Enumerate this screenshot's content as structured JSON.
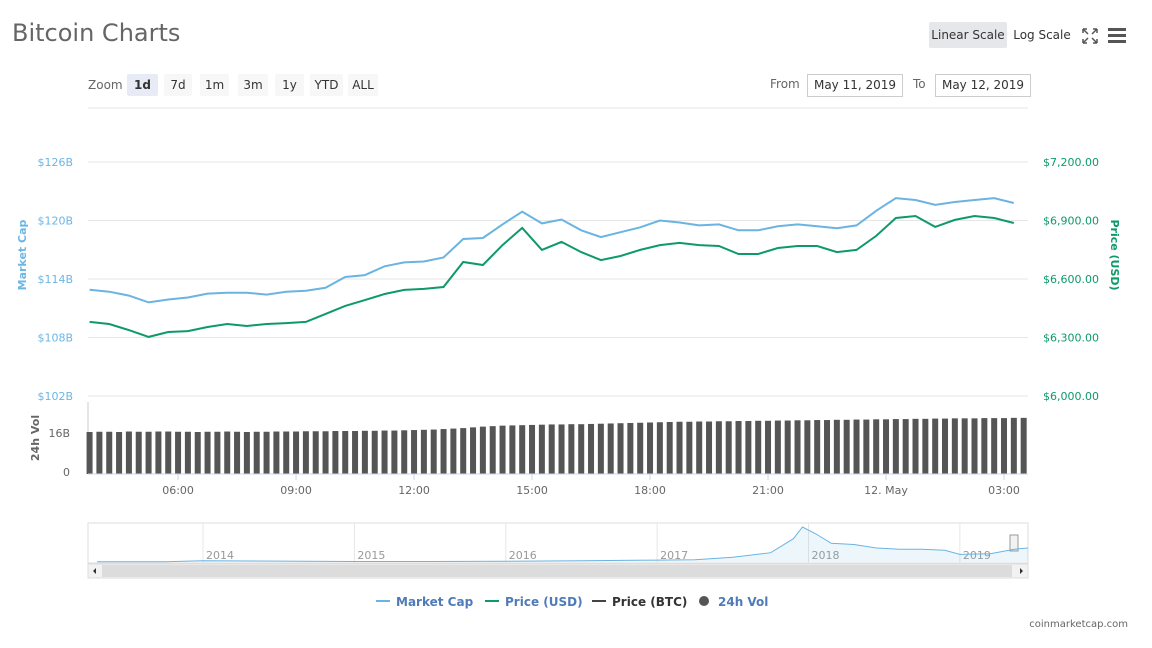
{
  "header": {
    "title": "Bitcoin Charts",
    "scale_options": [
      "Linear Scale",
      "Log Scale"
    ],
    "active_scale": 0
  },
  "zoom": {
    "label": "Zoom",
    "options": [
      "1d",
      "7d",
      "1m",
      "3m",
      "1y",
      "YTD",
      "ALL"
    ],
    "active": 0
  },
  "range": {
    "from_label": "From",
    "from": "May 11, 2019",
    "to_label": "To",
    "to": "May 12, 2019"
  },
  "chart_data": [
    {
      "type": "line",
      "y_label": "Market Cap",
      "y2_label": "Price (USD)",
      "xlim": [
        3.71,
        27.61
      ],
      "ylim": [
        102,
        126
      ],
      "yticks": [
        {
          "value": 102,
          "label": "$102B"
        },
        {
          "value": 108,
          "label": "$108B"
        },
        {
          "value": 114,
          "label": "$114B"
        },
        {
          "value": 120,
          "label": "$120B"
        },
        {
          "value": 126,
          "label": "$126B"
        }
      ],
      "y2lim": [
        6000,
        7200
      ],
      "y2ticks": [
        {
          "value": 6000,
          "label": "$6,000.00"
        },
        {
          "value": 6300,
          "label": "$6,300.00"
        },
        {
          "value": 6600,
          "label": "$6,600.00"
        },
        {
          "value": 6900,
          "label": "$6,900.00"
        },
        {
          "value": 7200,
          "label": "$7,200.00"
        }
      ],
      "grid": true,
      "x": [
        3.75,
        4.25,
        4.75,
        5.25,
        5.75,
        6.25,
        6.75,
        7.25,
        7.75,
        8.25,
        8.75,
        9.25,
        9.75,
        10.25,
        10.75,
        11.25,
        11.75,
        12.25,
        12.75,
        13.25,
        13.75,
        14.25,
        14.75,
        15.25,
        15.75,
        16.25,
        16.75,
        17.25,
        17.75,
        18.25,
        18.75,
        19.25,
        19.75,
        20.25,
        20.75,
        21.25,
        21.75,
        22.25,
        22.75,
        23.25,
        23.75,
        24.25,
        24.75,
        25.25,
        25.75,
        26.25,
        26.75,
        27.25
      ],
      "series": [
        {
          "name": "Market Cap",
          "color": "#6ab4e2",
          "values": [
            112.9,
            112.7,
            112.3,
            111.6,
            111.9,
            112.1,
            112.5,
            112.6,
            112.6,
            112.4,
            112.7,
            112.8,
            113.1,
            114.2,
            114.4,
            115.3,
            115.7,
            115.8,
            116.2,
            118.1,
            118.2,
            119.6,
            120.9,
            119.7,
            120.1,
            119.0,
            118.3,
            118.8,
            119.3,
            120.0,
            119.8,
            119.5,
            119.6,
            119.0,
            119.0,
            119.4,
            119.6,
            119.4,
            119.2,
            119.5,
            121.0,
            122.3,
            122.1,
            121.6,
            121.9,
            122.1,
            122.3,
            121.8
          ]
        },
        {
          "name": "Price (USD)",
          "color": "#0e9a68",
          "axis": "y2",
          "values": [
            6380,
            6369,
            6338,
            6303,
            6328,
            6333,
            6354,
            6369,
            6359,
            6369,
            6374,
            6380,
            6421,
            6462,
            6492,
            6523,
            6544,
            6549,
            6559,
            6687,
            6672,
            6774,
            6862,
            6749,
            6790,
            6738,
            6697,
            6718,
            6749,
            6774,
            6785,
            6774,
            6769,
            6728,
            6728,
            6759,
            6769,
            6769,
            6738,
            6749,
            6821,
            6913,
            6923,
            6867,
            6903,
            6923,
            6913,
            6887
          ]
        },
        {
          "name": "Price (BTC)",
          "color": "#434348"
        }
      ]
    },
    {
      "type": "bar",
      "y_label": "24h Vol",
      "xlim": [
        3.71,
        27.61
      ],
      "xticks": [
        {
          "value": 6,
          "label": "06:00"
        },
        {
          "value": 9,
          "label": "09:00"
        },
        {
          "value": 12,
          "label": "12:00"
        },
        {
          "value": 15,
          "label": "15:00"
        },
        {
          "value": 18,
          "label": "18:00"
        },
        {
          "value": 21,
          "label": "21:00"
        },
        {
          "value": 24,
          "label": "12. May"
        },
        {
          "value": 27,
          "label": "03:00"
        }
      ],
      "ylim": [
        0,
        28.7
      ],
      "yticks": [
        0,
        {
          "value": 16,
          "label": "16B"
        }
      ],
      "x": [
        3.75,
        4,
        4.25,
        4.5,
        4.75,
        5,
        5.25,
        5.5,
        5.75,
        6,
        6.25,
        6.5,
        6.75,
        7,
        7.25,
        7.5,
        7.75,
        8,
        8.25,
        8.5,
        8.75,
        9,
        9.25,
        9.5,
        9.75,
        10,
        10.25,
        10.5,
        10.75,
        11,
        11.25,
        11.5,
        11.75,
        12,
        12.25,
        12.5,
        12.75,
        13,
        13.25,
        13.5,
        13.75,
        14,
        14.25,
        14.5,
        14.75,
        15,
        15.25,
        15.5,
        15.75,
        16,
        16.25,
        16.5,
        16.75,
        17,
        17.25,
        17.5,
        17.75,
        18,
        18.25,
        18.5,
        18.75,
        19,
        19.25,
        19.5,
        19.75,
        20,
        20.25,
        20.5,
        20.75,
        21,
        21.25,
        21.5,
        21.75,
        22,
        22.25,
        22.5,
        22.75,
        23,
        23.25,
        23.5,
        23.75,
        24,
        24.25,
        24.5,
        24.75,
        25,
        25.25,
        25.5,
        25.75,
        26,
        26.25,
        26.5,
        26.75,
        27,
        27.25,
        27.5
      ],
      "series": [
        {
          "name": "24h Vol",
          "color": "#555555",
          "values": [
            16.4,
            16.5,
            16.5,
            16.4,
            16.6,
            16.5,
            16.5,
            16.6,
            16.6,
            16.5,
            16.5,
            16.4,
            16.5,
            16.5,
            16.6,
            16.5,
            16.4,
            16.5,
            16.5,
            16.6,
            16.6,
            16.6,
            16.7,
            16.7,
            16.7,
            16.8,
            16.8,
            16.8,
            16.9,
            16.9,
            17.0,
            17.0,
            17.1,
            17.2,
            17.3,
            17.4,
            17.6,
            17.8,
            18.0,
            18.3,
            18.6,
            18.8,
            19.0,
            19.1,
            19.2,
            19.3,
            19.4,
            19.5,
            19.5,
            19.6,
            19.6,
            19.7,
            19.8,
            19.9,
            20.0,
            20.1,
            20.2,
            20.3,
            20.4,
            20.5,
            20.6,
            20.6,
            20.7,
            20.7,
            20.8,
            20.8,
            20.9,
            20.9,
            21.0,
            21.0,
            21.1,
            21.1,
            21.2,
            21.2,
            21.3,
            21.3,
            21.4,
            21.4,
            21.5,
            21.5,
            21.6,
            21.6,
            21.7,
            21.7,
            21.8,
            21.8,
            21.9,
            21.9,
            22.0,
            22.0,
            22.0,
            22.1,
            22.1,
            22.1,
            22.2,
            22.2
          ]
        }
      ]
    },
    {
      "type": "area",
      "color": "#6ab4e2",
      "xlim": [
        2013.24,
        2019.45
      ],
      "ylim": [
        0,
        300
      ],
      "xticks": [
        {
          "value": 2014,
          "label": "2014"
        },
        {
          "value": 2015,
          "label": "2015"
        },
        {
          "value": 2016,
          "label": "2016"
        },
        {
          "value": 2017,
          "label": "2017"
        },
        {
          "value": 2018,
          "label": "2018"
        },
        {
          "value": 2019,
          "label": "2019"
        }
      ],
      "x": [
        2013.3,
        2013.75,
        2014.0,
        2014.5,
        2015.0,
        2015.5,
        2016.0,
        2016.5,
        2017.0,
        2017.25,
        2017.5,
        2017.75,
        2017.9,
        2017.96,
        2018.05,
        2018.15,
        2018.3,
        2018.45,
        2018.6,
        2018.75,
        2018.9,
        2019.0,
        2019.2,
        2019.36,
        2019.45
      ],
      "values": [
        1.5,
        2,
        10,
        8,
        4,
        4,
        6,
        10,
        16,
        20,
        40,
        80,
        200,
        300,
        240,
        160,
        150,
        120,
        110,
        110,
        100,
        65,
        70,
        110,
        120
      ]
    }
  ],
  "footer": {
    "source": "coinmarketcap.com"
  }
}
